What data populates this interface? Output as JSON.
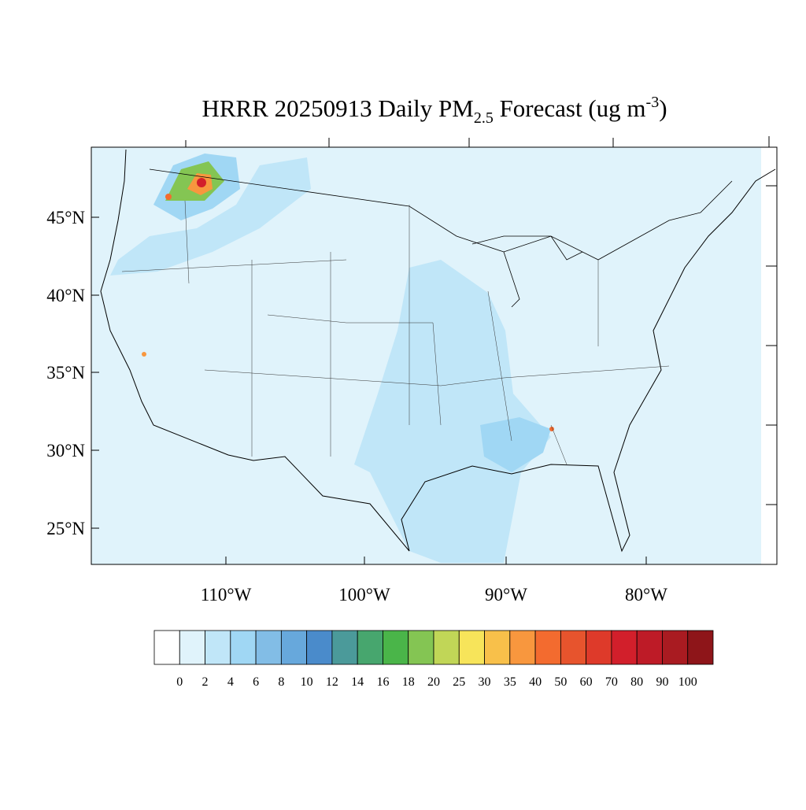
{
  "header": {
    "title": {
      "main": "HRRR 20250913 Daily PM",
      "sub": "2.5",
      "rest": " Forecast (ug m",
      "sup": "-3",
      "end": ")"
    }
  },
  "axes": {
    "lat_labels": [
      "45°N",
      "40°N",
      "35°N",
      "30°N",
      "25°N"
    ],
    "lon_labels": [
      "110°W",
      "100°W",
      "90°W",
      "80°W"
    ]
  },
  "colorbar": {
    "levels": [
      0,
      2,
      4,
      6,
      8,
      10,
      12,
      14,
      16,
      18,
      20,
      25,
      30,
      35,
      40,
      50,
      60,
      70,
      80,
      90,
      100
    ],
    "colors": [
      "#ffffff",
      "#e0f3fb",
      "#c0e6f8",
      "#a0d7f4",
      "#82bde6",
      "#67a8dc",
      "#4a8bcb",
      "#4b9a9a",
      "#47a66e",
      "#4ab549",
      "#84c553",
      "#c1d657",
      "#f7e45a",
      "#f8c04a",
      "#f8973e",
      "#f36b2f",
      "#e7542d",
      "#de3a2a",
      "#d21f2b",
      "#be1b27",
      "#a91b21",
      "#8e1519"
    ]
  }
}
